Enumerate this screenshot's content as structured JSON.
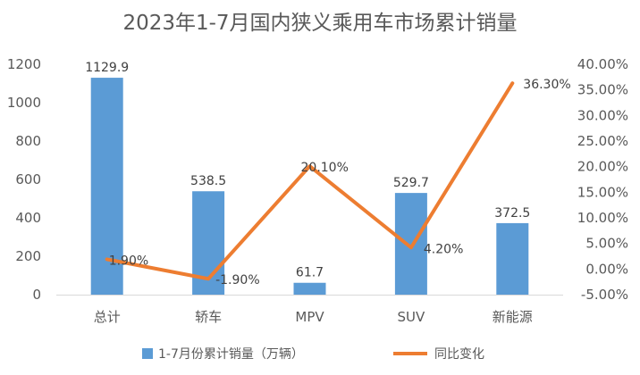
{
  "chart_data": {
    "type": "bar",
    "title": "2023年1-7月国内狭义乘用车市场累计销量",
    "categories": [
      "总计",
      "轿车",
      "MPV",
      "SUV",
      "新能源"
    ],
    "series": [
      {
        "name": "1-7月份累计销量（万辆）",
        "type": "bar",
        "axis": "left",
        "color": "#5b9bd5",
        "values": [
          1129.9,
          538.5,
          61.7,
          529.7,
          372.5
        ],
        "labels": [
          "1129.9",
          "538.5",
          "61.7",
          "529.7",
          "372.5"
        ]
      },
      {
        "name": "同比变化",
        "type": "line",
        "axis": "right",
        "color": "#ed7d31",
        "values": [
          1.9,
          -1.9,
          20.1,
          4.2,
          36.3
        ],
        "labels": [
          "1.90%",
          "-1.90%",
          "20.10%",
          "4.20%",
          "36.30%"
        ]
      }
    ],
    "y_left": {
      "min": 0,
      "max": 1200,
      "step": 200,
      "ticks": [
        "0",
        "200",
        "400",
        "600",
        "800",
        "1000",
        "1200"
      ]
    },
    "y_right": {
      "min": -5,
      "max": 40,
      "step": 5,
      "ticks": [
        "-5.00%",
        "0.00%",
        "5.00%",
        "10.00%",
        "15.00%",
        "20.00%",
        "25.00%",
        "30.00%",
        "35.00%",
        "40.00%"
      ]
    },
    "grid": false,
    "legend_position": "bottom"
  }
}
